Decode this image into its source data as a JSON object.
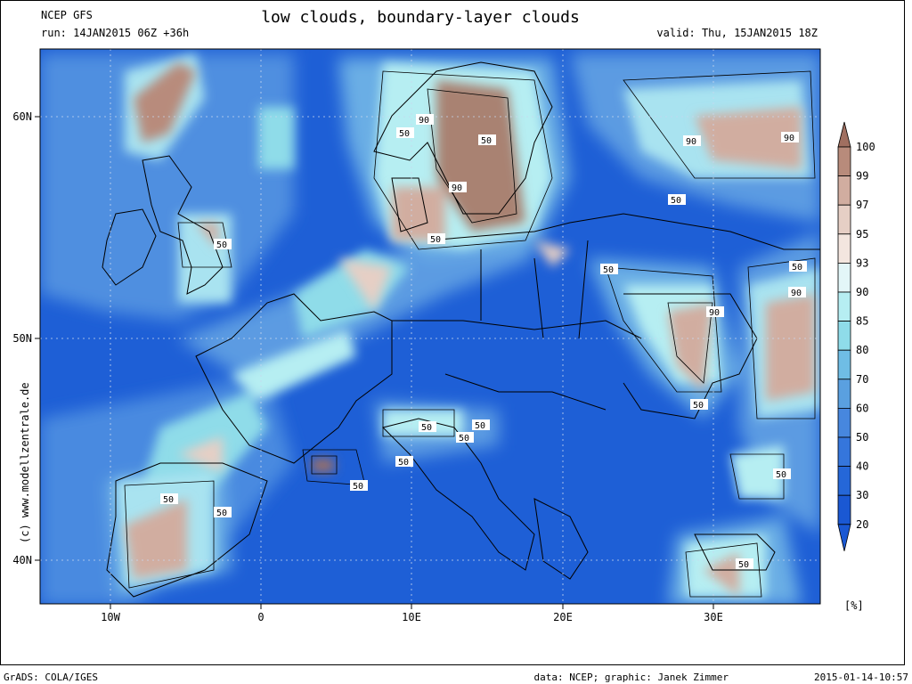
{
  "header": {
    "model": "NCEP GFS",
    "run": "run: 14JAN2015 06Z +36h",
    "title": "low clouds, boundary-layer clouds",
    "valid": "valid: Thu, 15JAN2015 18Z"
  },
  "map": {
    "lon_labels": [
      "10W",
      "0",
      "10E",
      "20E",
      "30E"
    ],
    "lat_labels": [
      "60N",
      "50N",
      "40N"
    ],
    "contour_labels": [
      "90",
      "50",
      "50",
      "90",
      "50",
      "50",
      "50",
      "90",
      "90",
      "50",
      "50",
      "90",
      "50",
      "90",
      "50",
      "50",
      "50",
      "50",
      "50",
      "50",
      "50",
      "50",
      "50"
    ],
    "copyright": "(c) www.modellzentrale.de"
  },
  "legend": {
    "unit": "[%]",
    "levels": [
      "100",
      "99",
      "97",
      "95",
      "93",
      "90",
      "85",
      "80",
      "70",
      "60",
      "50",
      "40",
      "30",
      "20"
    ],
    "colors": [
      "#a06f60",
      "#b88b7b",
      "#d1ada0",
      "#e6cfc5",
      "#f3e6df",
      "#e3f6f8",
      "#b6eef2",
      "#8fdce9",
      "#6fbde5",
      "#5aa0e0",
      "#4787de",
      "#3576dc",
      "#2567d8",
      "#1a58d3"
    ]
  },
  "footer": {
    "left": "GrADS: COLA/IGES",
    "credits": "data: NCEP; graphic: Janek Zimmer",
    "timestamp": "2015-01-14-10:57"
  }
}
